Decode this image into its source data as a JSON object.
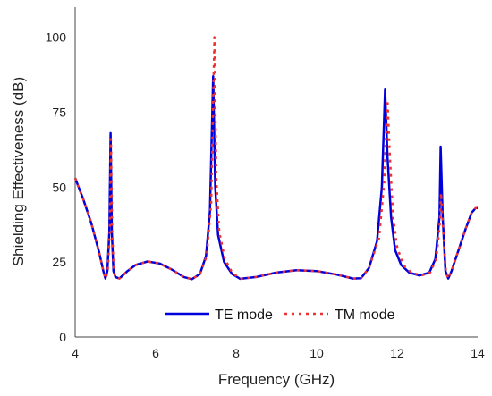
{
  "chart_data": {
    "type": "line",
    "title": "",
    "xlabel": "Frequency (GHz)",
    "ylabel": "Shielding Effectiveness (dB)",
    "xlim": [
      4,
      14
    ],
    "ylim": [
      0,
      110
    ],
    "x_ticks": [
      4,
      6,
      8,
      10,
      12,
      14
    ],
    "y_ticks": [
      0,
      25,
      50,
      75,
      100
    ],
    "grid": false,
    "legend_position": "bottom-center",
    "series": [
      {
        "name": "TE mode",
        "color": "#0000dd",
        "style": "solid",
        "points": [
          [
            4.0,
            53
          ],
          [
            4.2,
            46
          ],
          [
            4.4,
            38
          ],
          [
            4.6,
            28
          ],
          [
            4.7,
            22
          ],
          [
            4.75,
            19.5
          ],
          [
            4.8,
            22
          ],
          [
            4.85,
            35
          ],
          [
            4.88,
            68
          ],
          [
            4.91,
            35
          ],
          [
            4.95,
            22
          ],
          [
            5.0,
            20
          ],
          [
            5.1,
            19.5
          ],
          [
            5.3,
            22
          ],
          [
            5.5,
            24
          ],
          [
            5.8,
            25.2
          ],
          [
            6.1,
            24.5
          ],
          [
            6.4,
            22.5
          ],
          [
            6.7,
            20
          ],
          [
            6.9,
            19.3
          ],
          [
            7.1,
            21
          ],
          [
            7.25,
            27
          ],
          [
            7.35,
            42
          ],
          [
            7.43,
            87
          ],
          [
            7.48,
            50
          ],
          [
            7.55,
            34
          ],
          [
            7.7,
            25
          ],
          [
            7.9,
            21
          ],
          [
            8.1,
            19.4
          ],
          [
            8.5,
            20
          ],
          [
            9.0,
            21.5
          ],
          [
            9.5,
            22.3
          ],
          [
            10.0,
            22
          ],
          [
            10.5,
            20.8
          ],
          [
            10.9,
            19.5
          ],
          [
            11.1,
            19.6
          ],
          [
            11.3,
            23
          ],
          [
            11.5,
            32
          ],
          [
            11.62,
            50
          ],
          [
            11.7,
            82.5
          ],
          [
            11.76,
            60
          ],
          [
            11.85,
            40
          ],
          [
            11.95,
            29
          ],
          [
            12.1,
            24
          ],
          [
            12.3,
            21.5
          ],
          [
            12.55,
            20.5
          ],
          [
            12.8,
            21.5
          ],
          [
            12.95,
            26
          ],
          [
            13.05,
            40
          ],
          [
            13.08,
            63.5
          ],
          [
            13.13,
            40
          ],
          [
            13.2,
            22
          ],
          [
            13.27,
            19.5
          ],
          [
            13.35,
            22
          ],
          [
            13.5,
            28
          ],
          [
            13.7,
            36
          ],
          [
            13.85,
            41.5
          ],
          [
            13.95,
            43
          ],
          [
            14.0,
            43
          ]
        ]
      },
      {
        "name": "TM mode",
        "color": "#ee3333",
        "style": "dotted",
        "points": [
          [
            4.0,
            53
          ],
          [
            4.2,
            46
          ],
          [
            4.4,
            38
          ],
          [
            4.6,
            28
          ],
          [
            4.7,
            22
          ],
          [
            4.76,
            19.5
          ],
          [
            4.81,
            22
          ],
          [
            4.86,
            35
          ],
          [
            4.89,
            66
          ],
          [
            4.92,
            35
          ],
          [
            4.96,
            22
          ],
          [
            5.0,
            20
          ],
          [
            5.1,
            19.5
          ],
          [
            5.3,
            22
          ],
          [
            5.5,
            24
          ],
          [
            5.8,
            25.2
          ],
          [
            6.1,
            24.5
          ],
          [
            6.4,
            22.5
          ],
          [
            6.7,
            20
          ],
          [
            6.9,
            19.3
          ],
          [
            7.1,
            21
          ],
          [
            7.27,
            27
          ],
          [
            7.38,
            45
          ],
          [
            7.46,
            100
          ],
          [
            7.51,
            52
          ],
          [
            7.58,
            35
          ],
          [
            7.72,
            26
          ],
          [
            7.9,
            21.5
          ],
          [
            8.1,
            19.4
          ],
          [
            8.5,
            20
          ],
          [
            9.0,
            21.5
          ],
          [
            9.5,
            22.3
          ],
          [
            10.0,
            22
          ],
          [
            10.5,
            20.8
          ],
          [
            10.9,
            19.5
          ],
          [
            11.1,
            19.6
          ],
          [
            11.3,
            23
          ],
          [
            11.55,
            33
          ],
          [
            11.68,
            52
          ],
          [
            11.76,
            79
          ],
          [
            11.82,
            60
          ],
          [
            11.9,
            40
          ],
          [
            12.0,
            30
          ],
          [
            12.15,
            24
          ],
          [
            12.35,
            21.5
          ],
          [
            12.6,
            20.5
          ],
          [
            12.82,
            21.5
          ],
          [
            12.97,
            26
          ],
          [
            13.06,
            38
          ],
          [
            13.09,
            48
          ],
          [
            13.14,
            36
          ],
          [
            13.21,
            22
          ],
          [
            13.27,
            19.5
          ],
          [
            13.35,
            22
          ],
          [
            13.5,
            28
          ],
          [
            13.7,
            36
          ],
          [
            13.85,
            41.5
          ],
          [
            13.95,
            43
          ],
          [
            14.0,
            43
          ]
        ]
      }
    ]
  }
}
